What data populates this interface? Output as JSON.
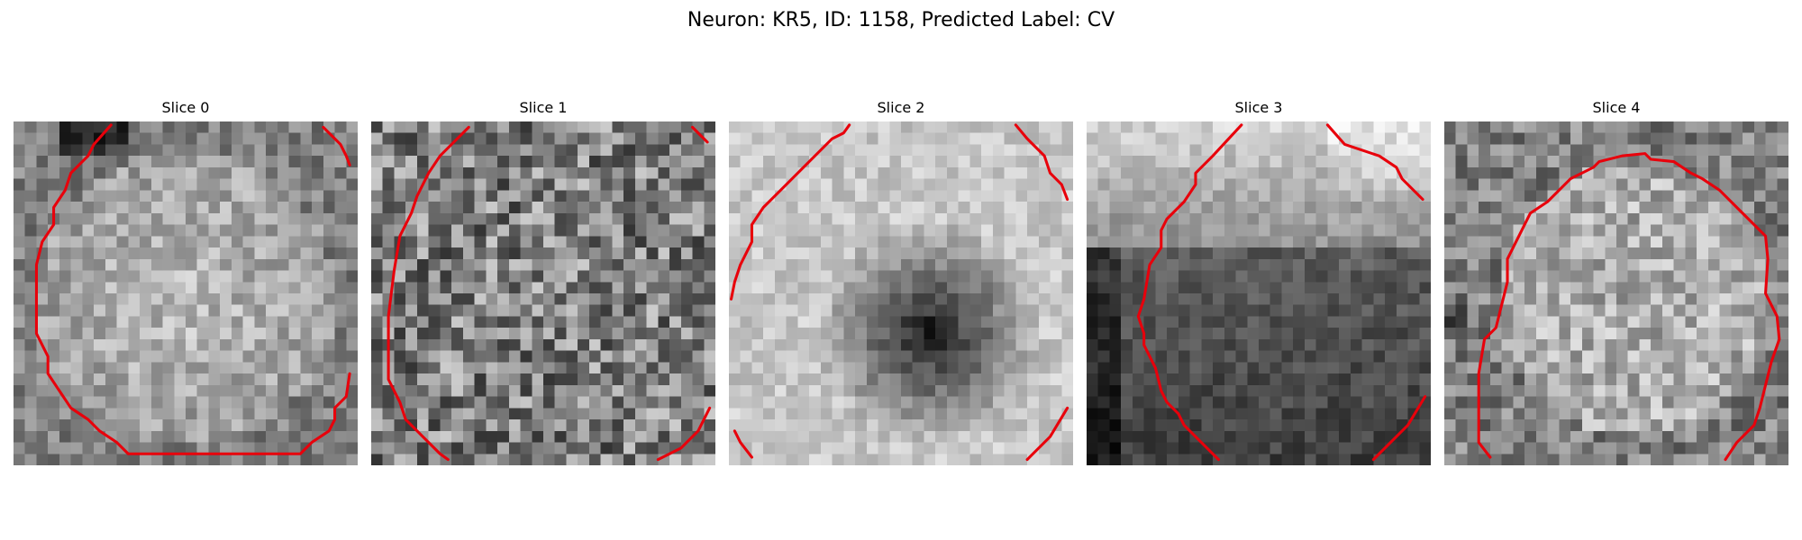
{
  "figure": {
    "title": "Neuron: KR5, ID: 1158, Predicted Label: CV"
  },
  "panels": [
    {
      "title": "Slice 0"
    },
    {
      "title": "Slice 1"
    },
    {
      "title": "Slice 2"
    },
    {
      "title": "Slice 3"
    },
    {
      "title": "Slice 4"
    }
  ],
  "colors": {
    "contour": "#e8000b",
    "colormap": "gray"
  }
}
